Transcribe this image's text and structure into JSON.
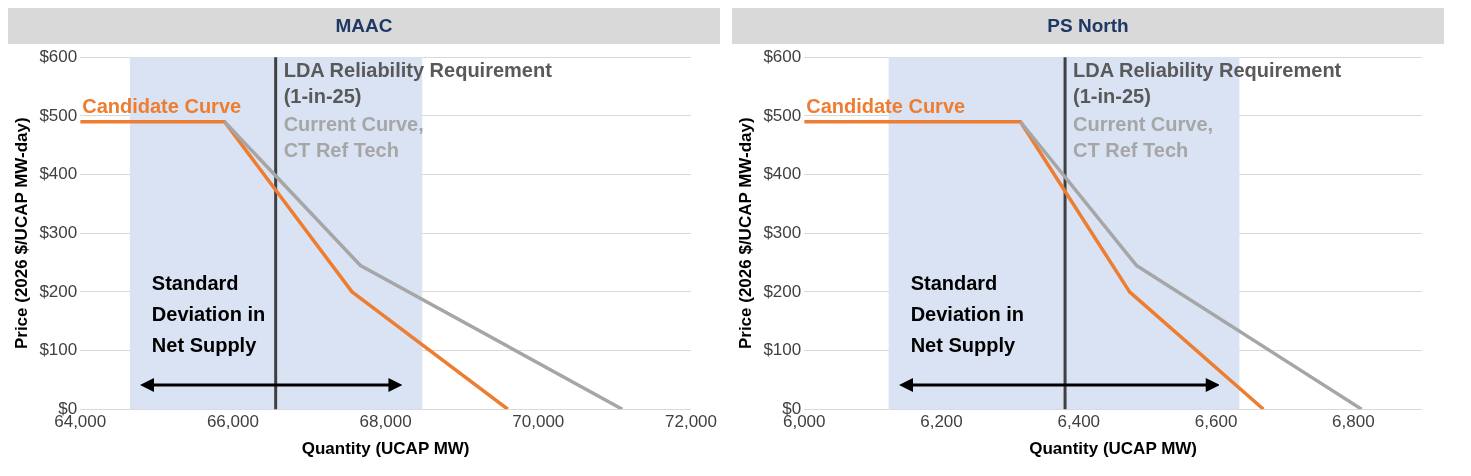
{
  "chart_data": [
    {
      "type": "line",
      "title": "MAAC",
      "xlabel": "Quantity (UCAP MW)",
      "ylabel": "Price (2026 $/UCAP MW-day)",
      "xlim": [
        64000,
        72000
      ],
      "xticks": [
        {
          "value": 64000,
          "label": "64,000"
        },
        {
          "value": 66000,
          "label": "66,000"
        },
        {
          "value": 68000,
          "label": "68,000"
        },
        {
          "value": 70000,
          "label": "70,000"
        },
        {
          "value": 72000,
          "label": "72,000"
        }
      ],
      "ylim": [
        0,
        600
      ],
      "yticks": [
        {
          "value": 0,
          "label": "$0"
        },
        {
          "value": 100,
          "label": "$100"
        },
        {
          "value": 200,
          "label": "$200"
        },
        {
          "value": 300,
          "label": "$300"
        },
        {
          "value": 400,
          "label": "$400"
        },
        {
          "value": 500,
          "label": "$500"
        },
        {
          "value": 600,
          "label": "$600"
        }
      ],
      "grid": "y",
      "series": [
        {
          "name": "Current Curve, CT Ref Tech",
          "color": "#a6a6a6",
          "x": [
            65890,
            67670,
            71100
          ],
          "values": [
            490,
            245,
            0
          ]
        },
        {
          "name": "Candidate Curve",
          "color": "#ed7d31",
          "x": [
            64000,
            65890,
            67560,
            69600
          ],
          "values": [
            490,
            490,
            200,
            0
          ]
        }
      ],
      "bands": [
        {
          "axis": "x",
          "from": 64650,
          "to": 68480,
          "label": "Standard Deviation in Net Supply",
          "color": "#dae3f3"
        }
      ],
      "ref_lines": [
        {
          "axis": "x",
          "value": 66560,
          "label": "LDA Reliability Requirement (1-in-25)",
          "color": "#404040"
        }
      ]
    },
    {
      "type": "line",
      "title": "PS North",
      "xlabel": "Quantity (UCAP MW)",
      "ylabel": "Price (2026 $/UCAP MW-day)",
      "xlim": [
        6000,
        6900
      ],
      "xticks": [
        {
          "value": 6000,
          "label": "6,000"
        },
        {
          "value": 6200,
          "label": "6,200"
        },
        {
          "value": 6400,
          "label": "6,400"
        },
        {
          "value": 6600,
          "label": "6,600"
        },
        {
          "value": 6800,
          "label": "6,800"
        }
      ],
      "ylim": [
        0,
        600
      ],
      "yticks": [
        {
          "value": 0,
          "label": "$0"
        },
        {
          "value": 100,
          "label": "$100"
        },
        {
          "value": 200,
          "label": "$200"
        },
        {
          "value": 300,
          "label": "$300"
        },
        {
          "value": 400,
          "label": "$400"
        },
        {
          "value": 500,
          "label": "$500"
        },
        {
          "value": 600,
          "label": "$600"
        }
      ],
      "grid": "y",
      "series": [
        {
          "name": "Current Curve, CT Ref Tech",
          "color": "#a6a6a6",
          "x": [
            6315,
            6484,
            6812
          ],
          "values": [
            490,
            245,
            0
          ]
        },
        {
          "name": "Candidate Curve",
          "color": "#ed7d31",
          "x": [
            6000,
            6315,
            6474,
            6669
          ],
          "values": [
            490,
            490,
            200,
            0
          ]
        }
      ],
      "bands": [
        {
          "axis": "x",
          "from": 6123,
          "to": 6634,
          "label": "Standard Deviation in Net Supply",
          "color": "#dae3f3"
        }
      ],
      "ref_lines": [
        {
          "axis": "x",
          "value": 6380,
          "label": "LDA Reliability Requirement (1-in-25)",
          "color": "#404040"
        }
      ]
    }
  ]
}
